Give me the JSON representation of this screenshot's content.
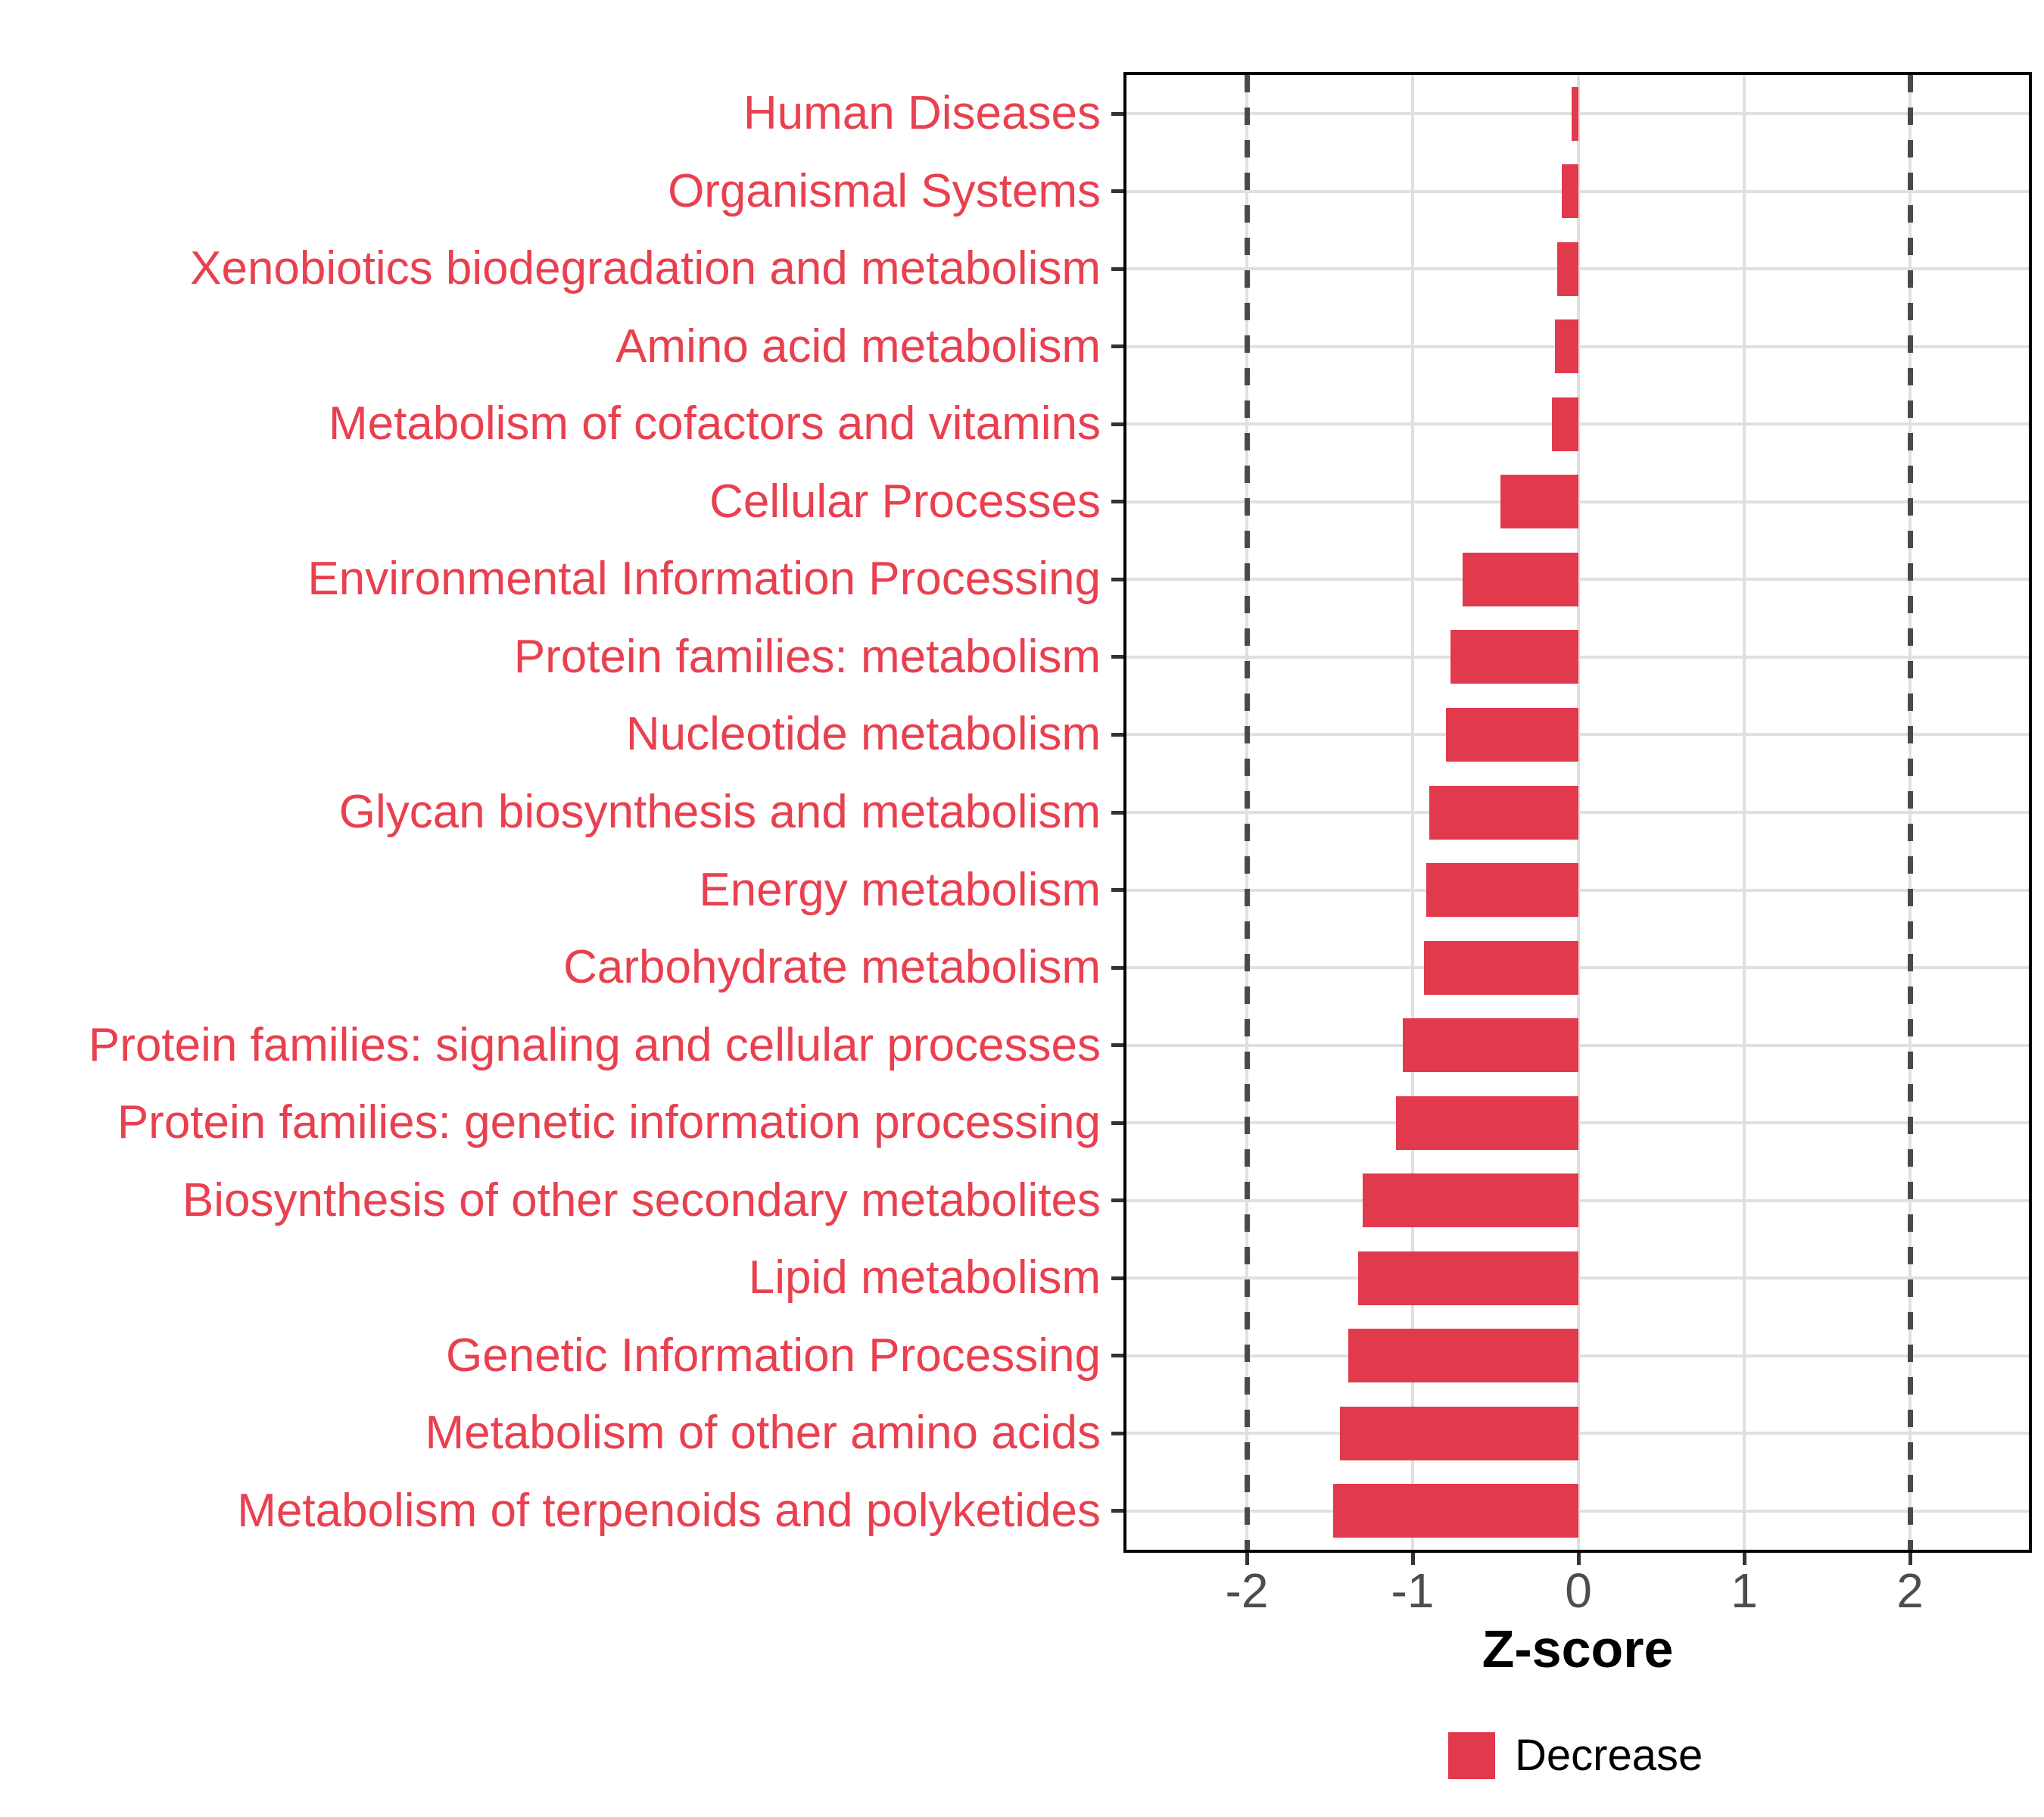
{
  "chart_data": {
    "type": "bar",
    "orientation": "horizontal",
    "title": "",
    "xlabel": "Z-score",
    "categories": [
      "Human Diseases",
      "Organismal Systems",
      "Xenobiotics biodegradation and metabolism",
      "Amino acid metabolism",
      "Metabolism of cofactors and vitamins",
      "Cellular Processes",
      "Environmental Information Processing",
      "Protein families: metabolism",
      "Nucleotide metabolism",
      "Glycan biosynthesis and metabolism",
      "Energy metabolism",
      "Carbohydrate metabolism",
      "Protein families: signaling and cellular processes",
      "Protein families: genetic information processing",
      "Biosynthesis of other secondary metabolites",
      "Lipid metabolism",
      "Genetic Information Processing",
      "Metabolism of other amino acids",
      "Metabolism of terpenoids and polyketides"
    ],
    "series": [
      {
        "name": "Decrease",
        "values": [
          -0.04,
          -0.1,
          -0.13,
          -0.14,
          -0.16,
          -0.47,
          -0.7,
          -0.77,
          -0.8,
          -0.9,
          -0.92,
          -0.93,
          -1.06,
          -1.1,
          -1.3,
          -1.33,
          -1.39,
          -1.44,
          -1.48
        ]
      }
    ],
    "xlim": [
      -2.73,
      2.72
    ],
    "xtick_values": [
      -2,
      -1,
      0,
      1,
      2
    ],
    "xtick_labels": [
      "-2",
      "-1",
      "0",
      "1",
      "2"
    ],
    "grid": {
      "vertical_major_at": [
        -2,
        -1,
        0,
        1,
        2
      ],
      "horizontal_major": "one line per category row",
      "minor": "none"
    },
    "reference_lines": [
      {
        "x": -2,
        "style": "dashed"
      },
      {
        "x": 2,
        "style": "dashed"
      }
    ],
    "legend": {
      "position": "bottom-center",
      "entries": [
        {
          "label": "Decrease",
          "swatch_color": "#E23A4D"
        }
      ]
    }
  },
  "colors": {
    "bar_fill": "#E23A4D",
    "category_label_text": "#E9404F",
    "axis_tick_text": "#4D4D4D",
    "axis_title_text": "#000000",
    "legend_text": "#000000",
    "panel_border": "#000000",
    "gridline": "#E0E0E0",
    "dashed_reference": "#4A4A4A",
    "tick_mark": "#333333",
    "background": "#FFFFFF"
  }
}
